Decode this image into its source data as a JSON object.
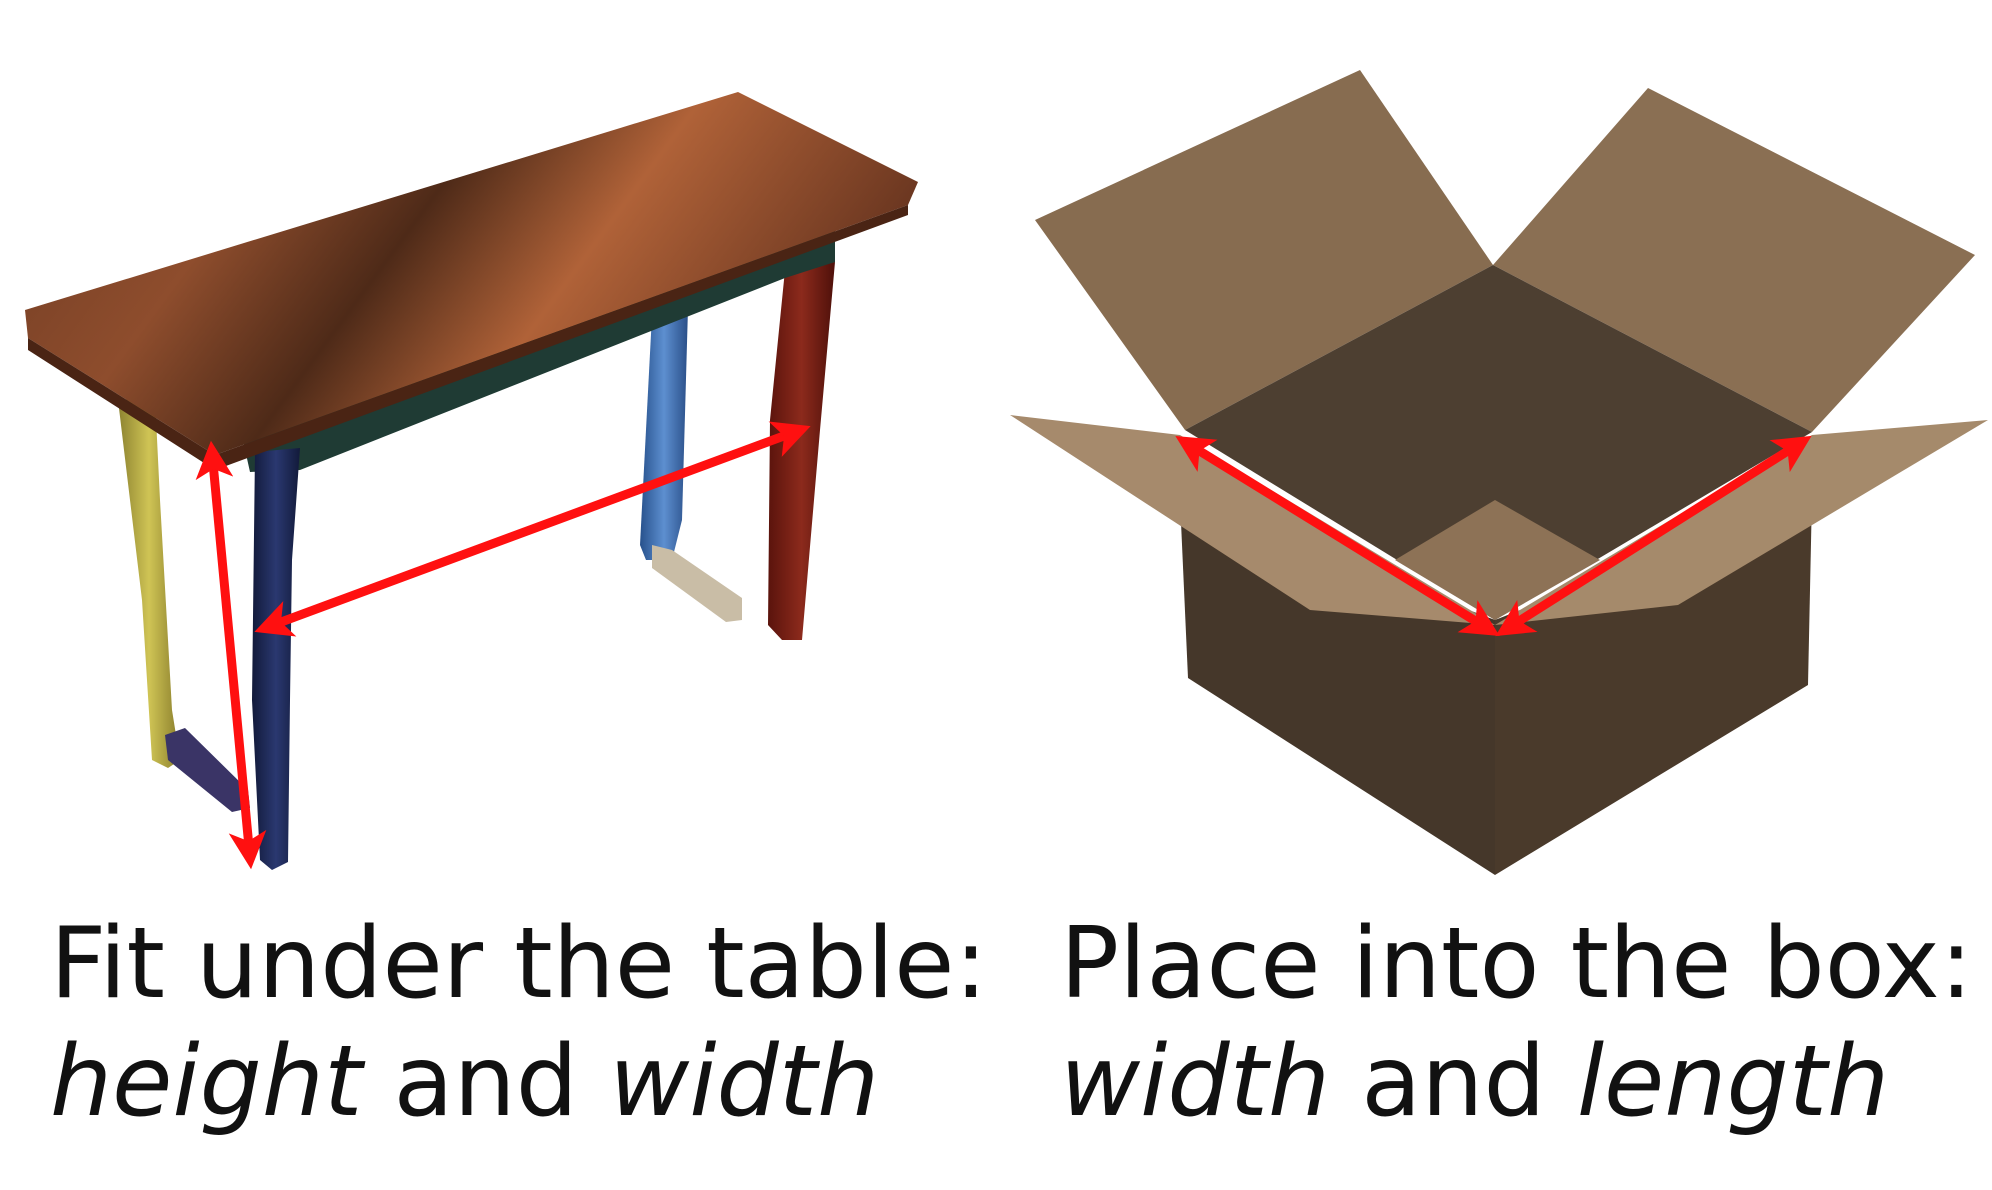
{
  "left_panel": {
    "object": "table",
    "caption_line1": "Fit under the table:",
    "caption_line2": {
      "term1": "height",
      "connector": " and ",
      "term2": "width"
    }
  },
  "right_panel": {
    "object": "box",
    "caption_line1": "Place into the box:",
    "caption_line2": {
      "term1": "width",
      "connector": " and ",
      "term2": "length"
    }
  },
  "colors": {
    "arrow": "#ff1010",
    "table_top": "#8b4a2b",
    "table_leg_yellow": "#b8ac3a",
    "table_leg_navy": "#1e2a55",
    "table_leg_blue": "#3e6fb0",
    "table_leg_red": "#7a1e14",
    "table_apron": "#1f3b34",
    "box_flap": "#8b6f52",
    "box_inner": "#4a3c2e",
    "box_front": "#473828"
  }
}
